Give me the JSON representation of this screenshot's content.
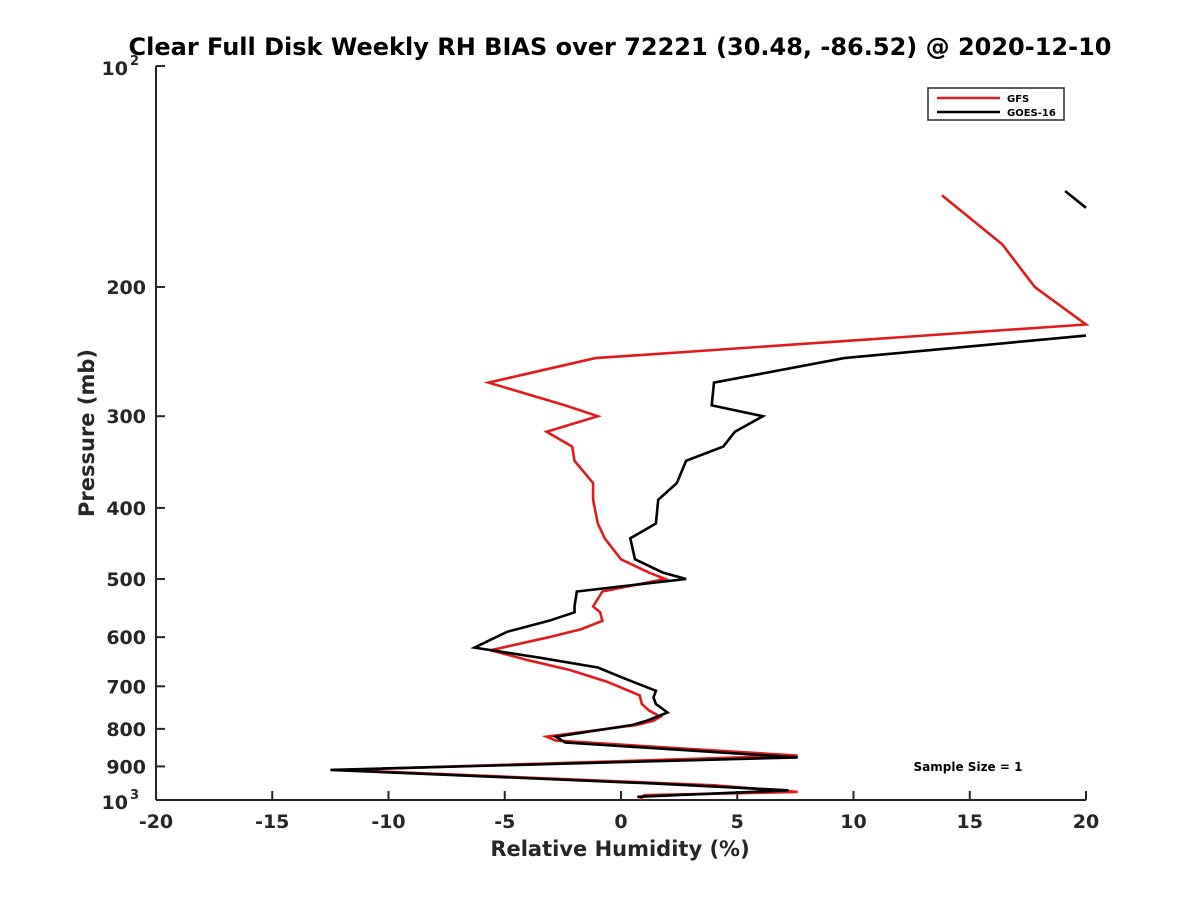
{
  "chart_data": {
    "type": "line",
    "title": "Clear Full Disk Weekly RH BIAS over 72221 (30.48, -86.52) @ 2020-12-10",
    "xlabel": "Relative Humidity (%)",
    "ylabel": "Pressure (mb)",
    "xlim": [
      -20,
      20
    ],
    "ylim": [
      100,
      1000
    ],
    "y_scale": "log",
    "y_reversed": true,
    "grid": false,
    "legend_position": "top-right",
    "x_ticks": [
      "-20",
      "-15",
      "-10",
      "-5",
      "0",
      "5",
      "10",
      "15",
      "20"
    ],
    "y_ticks": [
      {
        "value": 100,
        "base": "10",
        "exp": "2"
      },
      {
        "value": 200,
        "label": "200"
      },
      {
        "value": 300,
        "label": "300"
      },
      {
        "value": 400,
        "label": "400"
      },
      {
        "value": 500,
        "label": "500"
      },
      {
        "value": 600,
        "label": "600"
      },
      {
        "value": 700,
        "label": "700"
      },
      {
        "value": 800,
        "label": "800"
      },
      {
        "value": 900,
        "label": "900"
      },
      {
        "value": 1000,
        "base": "10",
        "exp": "3"
      }
    ],
    "annotation": "Sample Size = 1",
    "series": [
      {
        "name": "GFS",
        "color": "#e11b1b",
        "points": [
          [
            13.8,
            150
          ],
          [
            16.4,
            175
          ],
          [
            17.8,
            200
          ],
          [
            20.0,
            225
          ],
          [
            -1.1,
            250
          ],
          [
            -5.7,
            270
          ],
          [
            -2.4,
            290
          ],
          [
            -1.0,
            300
          ],
          [
            -3.2,
            315
          ],
          [
            -2.1,
            330
          ],
          [
            -2.0,
            345
          ],
          [
            -1.2,
            370
          ],
          [
            -1.2,
            390
          ],
          [
            -1.0,
            420
          ],
          [
            -0.7,
            440
          ],
          [
            0.0,
            470
          ],
          [
            1.2,
            490
          ],
          [
            1.9,
            500
          ],
          [
            -0.8,
            520
          ],
          [
            -1.2,
            545
          ],
          [
            -0.9,
            555
          ],
          [
            -0.8,
            570
          ],
          [
            -1.7,
            585
          ],
          [
            -3.1,
            600
          ],
          [
            -5.6,
            625
          ],
          [
            -4.0,
            645
          ],
          [
            -2.2,
            665
          ],
          [
            -0.6,
            690
          ],
          [
            0.8,
            720
          ],
          [
            0.9,
            740
          ],
          [
            1.2,
            755
          ],
          [
            1.7,
            770
          ],
          [
            1.4,
            780
          ],
          [
            0.7,
            790
          ],
          [
            -3.2,
            820
          ],
          [
            -2.8,
            830
          ],
          [
            7.6,
            870
          ],
          [
            -12.0,
            910
          ],
          [
            4.0,
            955
          ],
          [
            7.6,
            975
          ],
          [
            1.0,
            985
          ],
          [
            0.8,
            1000
          ]
        ]
      },
      {
        "name": "GOES-16",
        "color": "#000000",
        "segments": [
          [
            [
              19.1,
              148
            ],
            [
              20.0,
              156
            ]
          ],
          [
            [
              20.0,
              233
            ],
            [
              9.6,
              250
            ],
            [
              4.0,
              270
            ],
            [
              3.9,
              290
            ],
            [
              6.1,
              300
            ],
            [
              4.9,
              315
            ],
            [
              4.4,
              330
            ],
            [
              2.8,
              345
            ],
            [
              2.4,
              370
            ],
            [
              1.6,
              390
            ],
            [
              1.5,
              420
            ],
            [
              0.4,
              440
            ],
            [
              0.6,
              470
            ],
            [
              1.8,
              490
            ],
            [
              2.8,
              500
            ],
            [
              -1.9,
              520
            ],
            [
              -2.0,
              545
            ],
            [
              -2.0,
              555
            ],
            [
              -3.1,
              570
            ],
            [
              -4.9,
              590
            ],
            [
              -6.3,
              620
            ],
            [
              -3.5,
              640
            ],
            [
              -1.0,
              660
            ],
            [
              0.0,
              680
            ],
            [
              1.5,
              710
            ],
            [
              1.4,
              725
            ],
            [
              1.5,
              740
            ],
            [
              2.0,
              760
            ],
            [
              1.1,
              780
            ],
            [
              0.5,
              790
            ],
            [
              -2.8,
              820
            ],
            [
              -2.4,
              835
            ],
            [
              7.6,
              875
            ],
            [
              -12.5,
              910
            ],
            [
              1.5,
              950
            ],
            [
              7.2,
              970
            ],
            [
              0.7,
              990
            ]
          ]
        ]
      }
    ]
  }
}
